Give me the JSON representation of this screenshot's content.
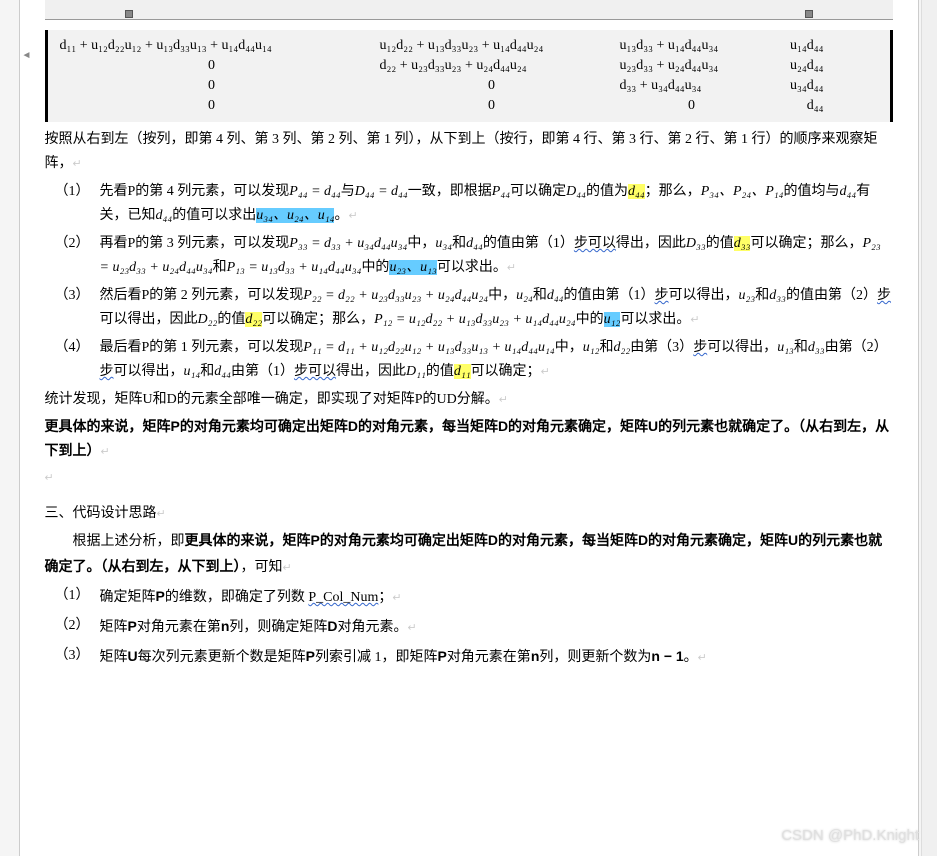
{
  "colors": {
    "page_bg": "#ffffff",
    "outer_bg": "#f5f5f5",
    "matrix_bg": "#f2f2f2",
    "hl_yellow": "#ffff66",
    "hl_blue": "#66ccff",
    "wavy_color": "#3366cc"
  },
  "matrix": {
    "row1": {
      "c1": "d₁₁ + u₁₂d₂₂u₁₂ + u₁₃d₃₃u₁₃ + u₁₄d₄₄u₁₄",
      "c2": "u₁₂d₂₂ + u₁₃d₃₃u₂₃ + u₁₄d₄₄u₂₄",
      "c3": "u₁₃d₃₃ + u₁₄d₄₄u₃₄",
      "c4": "u₁₄d₄₄"
    },
    "row2": {
      "c1": "0",
      "c2": "d₂₂ + u₂₃d₃₃u₂₃ + u₂₄d₄₄u₂₄",
      "c3": "u₂₃d₃₃ + u₂₄d₄₄u₃₄",
      "c4": "u₂₄d₄₄"
    },
    "row3": {
      "c1": "0",
      "c2": "0",
      "c3": "d₃₃ + u₃₄d₄₄u₃₄",
      "c4": "u₃₄d₄₄"
    },
    "row4": {
      "c1": "0",
      "c2": "0",
      "c3": "0",
      "c4": "d₄₄"
    }
  },
  "p_intro": "按照从右到左（按列，即第 4 列、第 3 列、第 2 列、第 1 列），从下到上（按行，即第 4 行、第 3 行、第 2 行、第 1 行）的顺序来观察矩阵，",
  "items_first": [
    {
      "num": "（1）",
      "parts": [
        {
          "t": "先看P的第 4 列元素，可以发现"
        },
        {
          "t": "P₄₄ = d₄₄",
          "math": true
        },
        {
          "t": "与"
        },
        {
          "t": "D₄₄ = d₄₄",
          "math": true
        },
        {
          "t": "一致，即根据"
        },
        {
          "t": "P₄₄",
          "math": true
        },
        {
          "t": "可以确定"
        },
        {
          "t": "D₄₄",
          "math": true
        },
        {
          "t": "的值为"
        },
        {
          "t": "d₄₄",
          "math": true,
          "hl": "yellow"
        },
        {
          "t": "；那么，"
        },
        {
          "t": "P₃₄、P₂₄、P₁₄",
          "math": true
        },
        {
          "t": "的值均与"
        },
        {
          "t": "d₄₄",
          "math": true
        },
        {
          "t": "有关，已知"
        },
        {
          "t": "d₄₄",
          "math": true
        },
        {
          "t": "的值可以求出"
        },
        {
          "t": "u₃₄、u₂₄、u₁₄",
          "math": true,
          "hl": "blue"
        },
        {
          "t": "。"
        }
      ]
    },
    {
      "num": "（2）",
      "parts": [
        {
          "t": "再看P的第 3 列元素，可以发现"
        },
        {
          "t": "P₃₃ = d₃₃ + u₃₄d₄₄u₃₄",
          "math": true
        },
        {
          "t": "中，"
        },
        {
          "t": "u₃₄",
          "math": true
        },
        {
          "t": "和"
        },
        {
          "t": "d₄₄",
          "math": true
        },
        {
          "t": "的值由第（1）"
        },
        {
          "t": "步",
          "wavy": true
        },
        {
          "t": "可以",
          "wavy": true
        },
        {
          "t": "得出，因此"
        },
        {
          "t": "D₃₃",
          "math": true
        },
        {
          "t": "的值"
        },
        {
          "t": "d₃₃",
          "math": true,
          "hl": "yellow"
        },
        {
          "t": "可以确定；那么，"
        },
        {
          "t": "P₂₃ = u₂₃d₃₃ + u₂₄d₄₄u₃₄",
          "math": true
        },
        {
          "t": "和"
        },
        {
          "t": "P₁₃ = u₁₃d₃₃ + u₁₄d₄₄u₃₄",
          "math": true
        },
        {
          "t": "中的"
        },
        {
          "t": "u₂₃、u₁₃",
          "math": true,
          "hl": "blue"
        },
        {
          "t": "可以求出。"
        }
      ]
    },
    {
      "num": "（3）",
      "parts": [
        {
          "t": "然后看P的第 2 列元素，可以发现"
        },
        {
          "t": "P₂₂ = d₂₂ + u₂₃d₃₃u₂₃ + u₂₄d₄₄u₂₄",
          "math": true
        },
        {
          "t": "中，"
        },
        {
          "t": "u₂₄",
          "math": true
        },
        {
          "t": "和"
        },
        {
          "t": "d₄₄",
          "math": true
        },
        {
          "t": "的值由第（1）"
        },
        {
          "t": "步",
          "wavy": true
        },
        {
          "t": "可以得出，"
        },
        {
          "t": "u₂₃",
          "math": true
        },
        {
          "t": "和"
        },
        {
          "t": "d₃₃",
          "math": true
        },
        {
          "t": "的值由第（2）"
        },
        {
          "t": "步",
          "wavy": true
        },
        {
          "t": "可以得出，因此"
        },
        {
          "t": "D₂₂",
          "math": true
        },
        {
          "t": "的值"
        },
        {
          "t": "d₂₂",
          "math": true,
          "hl": "yellow"
        },
        {
          "t": "可以确定；那么，"
        },
        {
          "t": "P₁₂ = u₁₂d₂₂ + u₁₃d₃₃u₂₃ + u₁₄d₄₄u₂₄",
          "math": true
        },
        {
          "t": "中的"
        },
        {
          "t": "u₁₂",
          "math": true,
          "hl": "blue"
        },
        {
          "t": "可以求出。"
        }
      ]
    },
    {
      "num": "（4）",
      "parts": [
        {
          "t": "最后看P的第 1 列元素，可以发现"
        },
        {
          "t": "P₁₁ = d₁₁ + u₁₂d₂₂u₁₂ + u₁₃d₃₃u₁₃ + u₁₄d₄₄u₁₄",
          "math": true
        },
        {
          "t": "中，"
        },
        {
          "t": "u₁₂",
          "math": true
        },
        {
          "t": "和"
        },
        {
          "t": "d₂₂",
          "math": true
        },
        {
          "t": "由第（3）"
        },
        {
          "t": "步",
          "wavy": true
        },
        {
          "t": "可以得出，"
        },
        {
          "t": "u₁₃",
          "math": true
        },
        {
          "t": "和"
        },
        {
          "t": "d₃₃",
          "math": true
        },
        {
          "t": "由第（2）"
        },
        {
          "t": "步",
          "wavy": true
        },
        {
          "t": "可以得出，"
        },
        {
          "t": "u₁₄",
          "math": true
        },
        {
          "t": "和"
        },
        {
          "t": "d₄₄",
          "math": true
        },
        {
          "t": "由第（1）"
        },
        {
          "t": "步",
          "wavy": true
        },
        {
          "t": "可以",
          "wavy": true
        },
        {
          "t": "得出，因此"
        },
        {
          "t": "D₁₁",
          "math": true
        },
        {
          "t": "的值"
        },
        {
          "t": "d₁₁",
          "math": true,
          "hl": "yellow"
        },
        {
          "t": "可以确定；"
        }
      ]
    }
  ],
  "p_summary1": "统计发现，矩阵U和D的元素全部唯一确定，即实现了对矩阵P的UD分解。",
  "p_summary2": "更具体的来说，矩阵P的对角元素均可确定出矩阵D的对角元素，每当矩阵D的对角元素确定，矩阵U的列元素也就确定了。（从右到左，从下到上）",
  "section3_title": "三、代码设计思路",
  "p_section3_intro_a": "根据上述分析，即",
  "p_section3_intro_b": "更具体的来说，矩阵P的对角元素均可确定出矩阵D的对角元素，每当矩阵D的对角元素确定，矩阵U的列元素也就确定了。（从右到左，从下到上）",
  "p_section3_intro_c": "，可知",
  "items_second": [
    {
      "num": "（1）",
      "parts": [
        {
          "t": "确定矩阵"
        },
        {
          "t": "P",
          "bold": true
        },
        {
          "t": "的维数，即确定了列数 "
        },
        {
          "t": "P_Col_Num",
          "wavy": true
        },
        {
          "t": "；"
        }
      ]
    },
    {
      "num": "（2）",
      "parts": [
        {
          "t": "矩阵"
        },
        {
          "t": "P",
          "bold": true
        },
        {
          "t": "对角元素在第"
        },
        {
          "t": "n",
          "bold": true
        },
        {
          "t": "列，则确定矩阵"
        },
        {
          "t": "D",
          "bold": true
        },
        {
          "t": "对角元素。"
        }
      ]
    },
    {
      "num": "（3）",
      "parts": [
        {
          "t": "矩阵"
        },
        {
          "t": "U",
          "bold": true
        },
        {
          "t": "每次列元素更新个数是矩阵"
        },
        {
          "t": "P",
          "bold": true
        },
        {
          "t": "列索引减 1，即矩阵"
        },
        {
          "t": "P",
          "bold": true
        },
        {
          "t": "对角元素在第"
        },
        {
          "t": "n",
          "bold": true
        },
        {
          "t": "列，则更新个数为"
        },
        {
          "t": "n − 1",
          "bold": true
        },
        {
          "t": "。"
        }
      ]
    }
  ],
  "watermark": "CSDN @PhD.Knight",
  "ret_mark": "↵"
}
